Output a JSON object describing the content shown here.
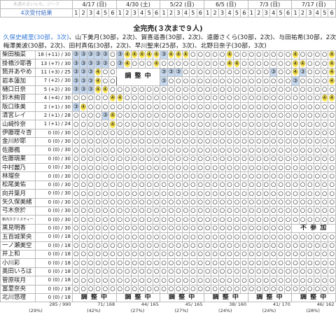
{
  "header": {
    "site": "永遠のまいんち。ジーク",
    "result": "4次受付結果",
    "dates": [
      "4/17 (日)",
      "4/30 (土)",
      "5/22 (日)",
      "6/5 (日)",
      "7/3 (日)",
      "7/17 (日)"
    ],
    "parts": [
      "1",
      "2",
      "3",
      "4",
      "5",
      "6"
    ]
  },
  "sold_out": {
    "title": "全完売(３次まで９人)",
    "highlight_color": "#3b7dd8",
    "lines": [
      [
        "久保史緒里(30部，3次)",
        "、山下美月(30部，2次)、",
        "賀喜遥香(30部，2次)、",
        "遠藤さくら(30部，2次)、",
        "与田祐希(30部，2次)、"
      ],
      [
        "梅澤美波(30部，2次)、",
        "田村真佑(30部，2次)、",
        "早川聖来(25部，3次)、",
        "北野日奈子(30部，3次)"
      ]
    ]
  },
  "rows": [
    {
      "name": "柴田柚菜",
      "count": "18",
      "delta": "(+11)",
      "quota": "/ 30",
      "dates": [
        "③③③③③○",
        "③④④④④④",
        "③④④④○○",
        "○○○④○○",
        "○○○○○○",
        "④○○○○④"
      ]
    },
    {
      "name": "掛橋沙耶香",
      "count": "13",
      "delta": "(+7)",
      "quota": "/ 30",
      "dates": [
        "③③③③③○",
        "③④○○○④",
        "○○○○○○",
        "○○○④④○",
        "○○○○○○",
        "④④○○○④"
      ]
    },
    {
      "name": "筒井あやめ",
      "count": "11",
      "delta": "(+3)",
      "quota": "/ 25",
      "dates": [
        "③③③④○○",
        {
          "text": "調 整 中",
          "rows": 2
        },
        "③③③○○○",
        "○○○○○○",
        "○○○③○○",
        "④③○○○④"
      ]
    },
    {
      "name": "岩本蓮加",
      "count": "7",
      "delta": "(+2)",
      "quota": "/ 30",
      "dates": [
        "③③③④○○",
        null,
        "③○○○○○",
        "○○○○○○",
        "○○○○○○",
        "③○○○○④"
      ]
    },
    {
      "name": "樋口日奈",
      "count": "5",
      "delta": "(+2)",
      "quota": "/ 30",
      "dates": [
        "③③③④④○",
        "○○○○○○",
        "○○○○○○",
        "○○○○○○",
        "○○○○○○",
        "○○○○○○"
      ]
    },
    {
      "name": "鈴木絢音",
      "count": "4",
      "delta": "(+4)",
      "quota": "/ 30",
      "dates": [
        "○○○○○④",
        "④○○○○○",
        "○○○○○○",
        "○○○○○○",
        "○○○○○○",
        "○○○○④④"
      ]
    },
    {
      "name": "阪口珠美",
      "count": "2",
      "delta": "(+1)",
      "quota": "/ 30",
      "dates": [
        "③④○○○○",
        "○○○○○○",
        "○○○○○○",
        "○○○○○○",
        "○○○○○○",
        "○○○○○○"
      ]
    },
    {
      "name": "清宮レイ",
      "count": "2",
      "delta": "(+1)",
      "quota": "/ 28",
      "dates": [
        "○○○○③④",
        "○○○○○○",
        "○○○○○○",
        "○○○○○○",
        "○○○○○○",
        "○○○○○○"
      ]
    },
    {
      "name": "山崎怜奈",
      "count": "1",
      "delta": "(+1)",
      "quota": "/ 24",
      "dates": [
        "○○○○○④",
        "○○○○○○",
        "○○○○○○",
        "○○○○○○",
        "○○○○○○",
        "○○○○○○"
      ]
    },
    {
      "name": "伊藤理々杏",
      "count": "0",
      "delta": "(0)",
      "quota": "/ 30",
      "dates": [
        "○○○○○○",
        "○○○○○○",
        "○○○○○○",
        "○○○○○○",
        "○○○○○○",
        "○○○○○○"
      ]
    },
    {
      "name": "金川紗耶",
      "count": "0",
      "delta": "(0)",
      "quota": "/ 30",
      "dates": [
        "○○○○○○",
        "○○○○○○",
        "○○○○○○",
        "○○○○○○",
        "○○○○○○",
        "○○○○○○"
      ]
    },
    {
      "name": "佐藤楓",
      "count": "0",
      "delta": "(0)",
      "quota": "/ 30",
      "dates": [
        "○○○○○○",
        "○○○○○○",
        "○○○○○○",
        "○○○○○○",
        "○○○○○○",
        "○○○○○○"
      ]
    },
    {
      "name": "佐藤璃果",
      "count": "0",
      "delta": "(0)",
      "quota": "/ 30",
      "dates": [
        "○○○○○○",
        "○○○○○○",
        "○○○○○○",
        "○○○○○○",
        "○○○○○○",
        "○○○○○○"
      ]
    },
    {
      "name": "中村麗乃",
      "count": "0",
      "delta": "(0)",
      "quota": "/ 30",
      "dates": [
        "○○○○○○",
        "○○○○○○",
        "○○○○○○",
        "○○○○○○",
        "○○○○○○",
        "○○○○○○"
      ]
    },
    {
      "name": "林瑠奈",
      "count": "0",
      "delta": "(0)",
      "quota": "/ 30",
      "dates": [
        "○○○○○○",
        "○○○○○○",
        "○○○○○○",
        "○○○○○○",
        "○○○○○○",
        "○○○○○○"
      ]
    },
    {
      "name": "松尾美佑",
      "count": "0",
      "delta": "(0)",
      "quota": "/ 30",
      "dates": [
        "○○○○○○",
        "○○○○○○",
        "○○○○○○",
        "○○○○○○",
        "○○○○○○",
        "○○○○○○"
      ]
    },
    {
      "name": "向井葉月",
      "count": "0",
      "delta": "(0)",
      "quota": "/ 30",
      "dates": [
        "○○○○○○",
        "○○○○○○",
        "○○○○○○",
        "○○○○○○",
        "○○○○○○",
        "○○○○○○"
      ]
    },
    {
      "name": "矢久保美緒",
      "count": "0",
      "delta": "(0)",
      "quota": "/ 30",
      "dates": [
        "○○○○○○",
        "○○○○○○",
        "○○○○○○",
        "○○○○○○",
        "○○○○○○",
        "○○○○○○"
      ]
    },
    {
      "name": "弓木奈於",
      "count": "0",
      "delta": "(0)",
      "quota": "/ 30",
      "dates": [
        "○○○○○○",
        "○○○○○○",
        "○○○○○○",
        "○○○○○○",
        "○○○○○○",
        "○○○○○○"
      ]
    },
    {
      "name": "新内カクリスティー",
      "count": "0",
      "delta": "(0)",
      "quota": "/ 30",
      "small": true,
      "dates": [
        "○○○○○○",
        "○○○○○○",
        "○○○○○○",
        "○○○○○○",
        "○○○○○○",
        "○○○○○○"
      ]
    },
    {
      "name": "黒見明香",
      "count": "0",
      "delta": "(0)",
      "quota": "/ 30",
      "dates": [
        "○○○○○○",
        "○○○○○○",
        "○○○○○○",
        "○○○○○○",
        "○○○○○○",
        {
          "text": "不 参 加"
        }
      ]
    },
    {
      "name": "五百城茉央",
      "count": "0",
      "delta": "(0)",
      "quota": "/ 18",
      "dates": [
        "○○○○○○",
        "○○○○○○",
        "○○○○○○",
        "○○○○○○",
        "○○○○○○",
        "○○○○○○"
      ]
    },
    {
      "name": "一ノ瀬美空",
      "count": "0",
      "delta": "(0)",
      "quota": "/ 18",
      "dates": [
        "○○○○○○",
        "○○○○○○",
        "○○○○○○",
        "○○○○○○",
        "○○○○○○",
        "○○○○○○"
      ]
    },
    {
      "name": "井上和",
      "count": "0",
      "delta": "(0)",
      "quota": "/ 18",
      "dates": [
        "○○○○○○",
        "○○○○○○",
        "○○○○○○",
        "○○○○○○",
        "○○○○○○",
        "○○○○○○"
      ]
    },
    {
      "name": "小川彩",
      "count": "0",
      "delta": "(0)",
      "quota": "/ 18",
      "dates": [
        "○○○○○○",
        "○○○○○○",
        "○○○○○○",
        "○○○○○○",
        "○○○○○○",
        "○○○○○○"
      ]
    },
    {
      "name": "奥田いろは",
      "count": "0",
      "delta": "(0)",
      "quota": "/ 18",
      "dates": [
        "○○○○○○",
        "○○○○○○",
        "○○○○○○",
        "○○○○○○",
        "○○○○○○",
        "○○○○○○"
      ]
    },
    {
      "name": "菅原咲月",
      "count": "0",
      "delta": "(0)",
      "quota": "/ 18",
      "dates": [
        "○○○○○○",
        "○○○○○○",
        "○○○○○○",
        "○○○○○○",
        "○○○○○○",
        "○○○○○○"
      ]
    },
    {
      "name": "冨里奈央",
      "count": "0",
      "delta": "(0)",
      "quota": "/ 18",
      "dates": [
        "○○○○○○",
        "○○○○○○",
        "○○○○○○",
        "○○○○○○",
        "○○○○○○",
        "○○○○○○"
      ]
    },
    {
      "name": "北川悠理",
      "count": "0",
      "delta": "(0)",
      "quota": "/ 18",
      "dates": [
        {
          "text": "調 整 中"
        },
        {
          "text": "調 整 中"
        },
        {
          "text": "調 整 中"
        },
        {
          "text": "調 整 中"
        },
        {
          "text": "調 整 中"
        },
        {
          "text": "調 整 中"
        }
      ]
    }
  ],
  "totals": {
    "count": "285 / 990",
    "pct": "(29%)"
  },
  "date_totals": [
    {
      "count": "71/ 168",
      "pct": "(42%)"
    },
    {
      "count": "44/ 165",
      "pct": "(27%)"
    },
    {
      "count": "45/ 165",
      "pct": "(27%)"
    },
    {
      "count": "38/ 160",
      "pct": "(24%)"
    },
    {
      "count": "41/ 170",
      "pct": "(24%)"
    },
    {
      "count": "46/ 162",
      "pct": "(28%)"
    }
  ]
}
